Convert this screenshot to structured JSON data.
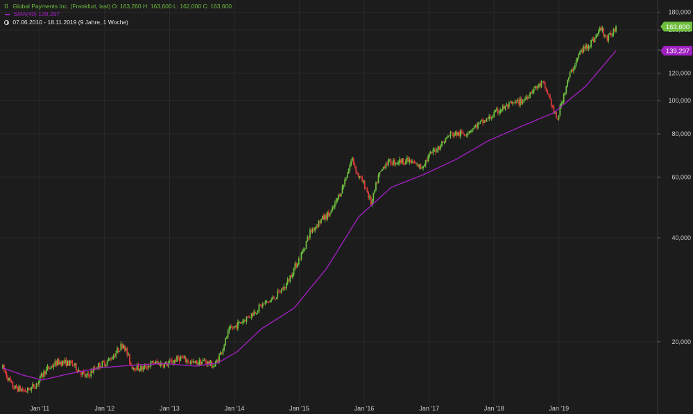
{
  "legend": {
    "instrument": "Global Payments Inc. (Frankfurt, last)",
    "ohlc": "O: 163,260  H: 163,600  L: 162,000  C: 163,600",
    "sma_label": "SMA(40)",
    "sma_value": "139,297",
    "range": "07.06.2010 - 18.11.2019",
    "range_note": "(9 Jahre, 1 Woche)"
  },
  "chart_data": {
    "type": "candlestick",
    "title": "Global Payments Inc. (Frankfurt, last)",
    "scale": "log",
    "ylim": [
      14,
      190
    ],
    "x_range": [
      "2010-06-07",
      "2019-11-18"
    ],
    "x_ticks": [
      {
        "date": "2011-01-01",
        "label": "Jan '11"
      },
      {
        "date": "2012-01-01",
        "label": "Jan '12"
      },
      {
        "date": "2013-01-01",
        "label": "Jan '13"
      },
      {
        "date": "2014-01-01",
        "label": "Jan '14"
      },
      {
        "date": "2015-01-01",
        "label": "Jan '15"
      },
      {
        "date": "2016-01-01",
        "label": "Jan '16"
      },
      {
        "date": "2017-01-01",
        "label": "Jan '17"
      },
      {
        "date": "2018-01-01",
        "label": "Jan '18"
      },
      {
        "date": "2019-01-01",
        "label": "Jan '19"
      }
    ],
    "y_ticks": [
      {
        "value": 20,
        "label": "20,000"
      },
      {
        "value": 40,
        "label": "40,000"
      },
      {
        "value": 60,
        "label": "60,000"
      },
      {
        "value": 80,
        "label": "80,000"
      },
      {
        "value": 100,
        "label": "100,000"
      },
      {
        "value": 120,
        "label": "120,000"
      },
      {
        "value": 140,
        "label": "140,000"
      },
      {
        "value": 160,
        "label": "160,000"
      },
      {
        "value": 180,
        "label": "180,000"
      }
    ],
    "price_path": [
      [
        "2010-06-07",
        16.8
      ],
      [
        "2010-08-01",
        14.8
      ],
      [
        "2010-10-15",
        14.4
      ],
      [
        "2010-12-10",
        15.0
      ],
      [
        "2011-02-01",
        16.5
      ],
      [
        "2011-04-15",
        17.5
      ],
      [
        "2011-07-01",
        17.3
      ],
      [
        "2011-09-20",
        15.8
      ],
      [
        "2011-11-20",
        17.0
      ],
      [
        "2012-01-15",
        17.5
      ],
      [
        "2012-03-01",
        18.5
      ],
      [
        "2012-04-15",
        19.8
      ],
      [
        "2012-06-01",
        17.0
      ],
      [
        "2012-08-01",
        16.7
      ],
      [
        "2012-10-01",
        17.4
      ],
      [
        "2012-12-15",
        17.2
      ],
      [
        "2013-03-01",
        18.0
      ],
      [
        "2013-05-15",
        17.3
      ],
      [
        "2013-07-15",
        17.6
      ],
      [
        "2013-09-10",
        17.0
      ],
      [
        "2013-10-20",
        18.8
      ],
      [
        "2013-12-01",
        21.5
      ],
      [
        "2014-02-15",
        23.0
      ],
      [
        "2014-04-15",
        24.2
      ],
      [
        "2014-06-01",
        25.5
      ],
      [
        "2014-08-01",
        26.5
      ],
      [
        "2014-10-15",
        29.0
      ],
      [
        "2014-12-01",
        32.5
      ],
      [
        "2015-01-15",
        36.0
      ],
      [
        "2015-03-01",
        41.5
      ],
      [
        "2015-05-01",
        45.0
      ],
      [
        "2015-07-01",
        47.5
      ],
      [
        "2015-09-01",
        56.0
      ],
      [
        "2015-10-25",
        68.0
      ],
      [
        "2015-11-25",
        61.0
      ],
      [
        "2016-01-10",
        56.0
      ],
      [
        "2016-02-10",
        50.0
      ],
      [
        "2016-03-20",
        60.0
      ],
      [
        "2016-05-01",
        66.0
      ],
      [
        "2016-07-01",
        66.5
      ],
      [
        "2016-09-01",
        67.0
      ],
      [
        "2016-11-15",
        64.0
      ],
      [
        "2017-01-10",
        70.0
      ],
      [
        "2017-03-01",
        74.0
      ],
      [
        "2017-05-01",
        80.0
      ],
      [
        "2017-07-15",
        80.0
      ],
      [
        "2017-10-01",
        85.0
      ],
      [
        "2017-12-01",
        88.5
      ],
      [
        "2018-02-01",
        94.0
      ],
      [
        "2018-04-01",
        97.0
      ],
      [
        "2018-06-15",
        100.0
      ],
      [
        "2018-08-01",
        107.0
      ],
      [
        "2018-10-01",
        112.0
      ],
      [
        "2018-11-05",
        103.0
      ],
      [
        "2018-12-20",
        87.0
      ],
      [
        "2019-01-25",
        103.0
      ],
      [
        "2019-03-01",
        118.0
      ],
      [
        "2019-05-01",
        138.0
      ],
      [
        "2019-07-15",
        150.0
      ],
      [
        "2019-08-25",
        162.0
      ],
      [
        "2019-10-01",
        150.0
      ],
      [
        "2019-11-18",
        163.6
      ]
    ],
    "sma_path": [
      [
        "2010-06-07",
        16.8
      ],
      [
        "2010-10-01",
        16.0
      ],
      [
        "2011-01-15",
        15.5
      ],
      [
        "2011-06-01",
        16.1
      ],
      [
        "2011-12-01",
        16.8
      ],
      [
        "2012-06-01",
        17.1
      ],
      [
        "2012-12-01",
        17.3
      ],
      [
        "2013-06-01",
        17.0
      ],
      [
        "2013-10-01",
        17.4
      ],
      [
        "2014-01-15",
        18.7
      ],
      [
        "2014-06-01",
        21.8
      ],
      [
        "2014-12-01",
        25.0
      ],
      [
        "2015-06-01",
        32.5
      ],
      [
        "2015-12-01",
        46.0
      ],
      [
        "2016-06-01",
        56.0
      ],
      [
        "2016-12-01",
        61.0
      ],
      [
        "2017-06-01",
        67.5
      ],
      [
        "2017-12-01",
        76.5
      ],
      [
        "2018-06-01",
        84.0
      ],
      [
        "2018-12-01",
        92.0
      ],
      [
        "2019-06-01",
        110.0
      ],
      [
        "2019-11-18",
        139.3
      ]
    ],
    "last_close": {
      "value": 163.6,
      "label": "163,600"
    },
    "sma": {
      "name": "SMA(40)",
      "value": 139.297,
      "label": "139,297"
    },
    "colors": {
      "up": "#6fbf3f",
      "down": "#d83a3a",
      "sma": "#a020c0",
      "background": "#1c1c1c",
      "grid": "#2a2a2a"
    }
  }
}
